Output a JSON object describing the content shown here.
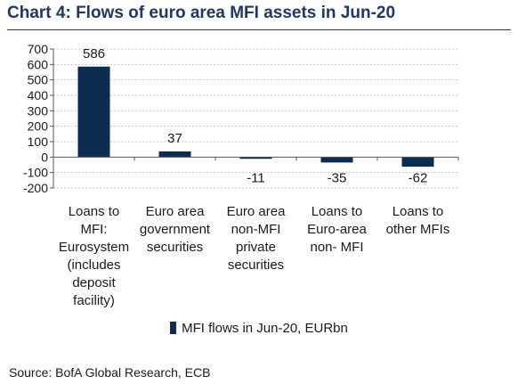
{
  "chart_data": {
    "type": "bar",
    "title": "Chart 4: Flows of euro area MFI assets in Jun-20",
    "categories": [
      [
        "Loans to",
        "MFI:",
        "Eurosystem",
        "(includes",
        "deposit",
        "facility)"
      ],
      [
        "Euro area",
        "government",
        "securities"
      ],
      [
        "Euro area",
        "non-MFI",
        "private",
        "securities"
      ],
      [
        "Loans to",
        "Euro-area",
        "non- MFI"
      ],
      [
        "Loans to",
        "other MFIs"
      ]
    ],
    "series": [
      {
        "name": "MFI flows in Jun-20, EURbn",
        "values": [
          586,
          37,
          -11,
          -35,
          -62
        ],
        "color": "#0d2c52"
      }
    ],
    "data_labels": [
      "586",
      "37",
      "-11",
      "-35",
      "-62"
    ],
    "yticks": [
      700,
      600,
      500,
      400,
      300,
      200,
      100,
      0,
      -100,
      -200
    ],
    "ylim": [
      -200,
      700
    ],
    "grid": true,
    "legend": "bottom",
    "xlabel": "",
    "ylabel": ""
  },
  "source": "Source: BofA Global Research, ECB"
}
